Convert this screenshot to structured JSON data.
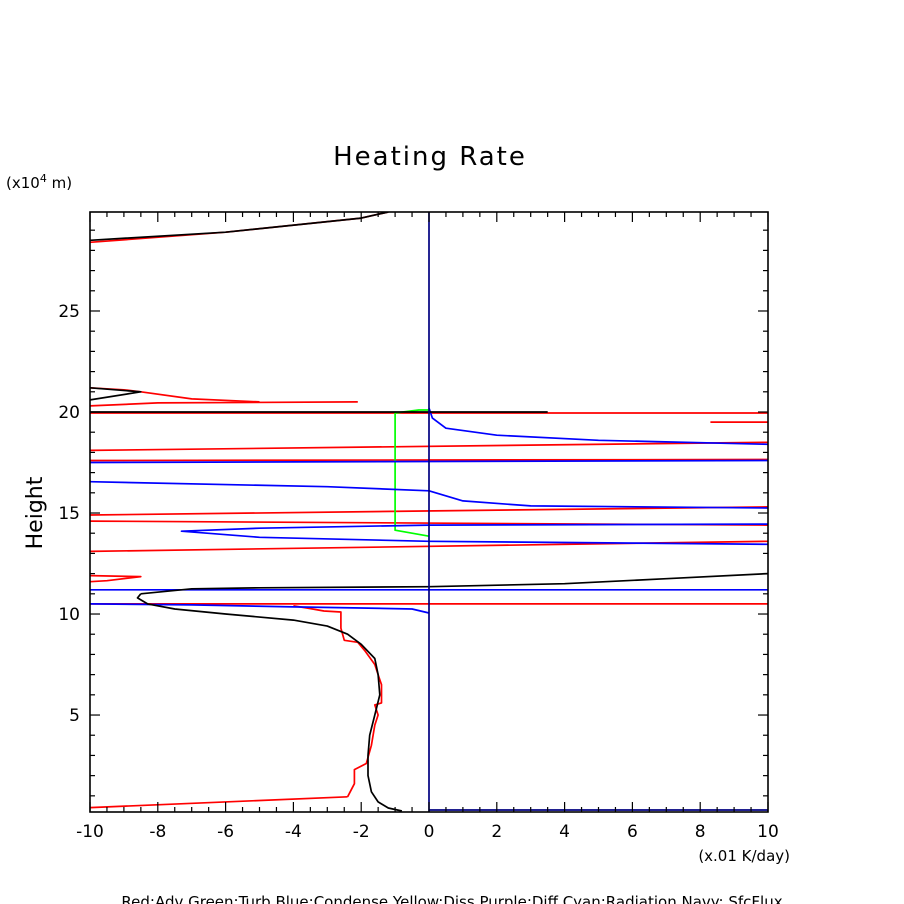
{
  "chart_data": {
    "type": "line",
    "title": "Heating Rate",
    "ylabel": "Height",
    "yunit_prefix": "(x10",
    "yunit_exp": "4",
    "yunit_suffix": " m)",
    "xunit": "(x.01 K/day)",
    "xlim": [
      -10,
      10
    ],
    "ylim": [
      0.2,
      29.9
    ],
    "xticks": [
      -10,
      -8,
      -6,
      -4,
      -2,
      0,
      2,
      4,
      6,
      8,
      10
    ],
    "yticks": [
      5,
      10,
      15,
      20,
      25
    ],
    "xtick_labels": [
      "-10",
      "-8",
      "-6",
      "-4",
      "-2",
      "0",
      "2",
      "4",
      "6",
      "8",
      "10"
    ],
    "ytick_labels": [
      "5",
      "10",
      "15",
      "20",
      "25"
    ],
    "grid": false,
    "legend_text": "Red:Adv  Green:Turb  Blue:Condense  Yellow:Diss  Purple:Diff  Cyan:Radiation  Navy: SfcFlux",
    "series": [
      {
        "name": "Red:Adv",
        "color": "#ff0000",
        "segments": [
          [
            [
              -2.4,
              0.95
            ],
            [
              -10,
              0.42
            ]
          ],
          [
            [
              -2.4,
              0.95
            ],
            [
              -2.2,
              1.6
            ],
            [
              -2.2,
              2.3
            ],
            [
              -1.85,
              2.6
            ],
            [
              -1.7,
              3.5
            ],
            [
              -1.6,
              4.5
            ],
            [
              -1.5,
              5.0
            ],
            [
              -1.6,
              5.5
            ],
            [
              -1.4,
              5.6
            ],
            [
              -1.4,
              6.5
            ],
            [
              -1.5,
              7.0
            ],
            [
              -1.6,
              7.5
            ],
            [
              -1.9,
              8.2
            ],
            [
              -2.1,
              8.6
            ],
            [
              -2.5,
              8.7
            ],
            [
              -2.6,
              9.3
            ],
            [
              -2.6,
              10.1
            ],
            [
              -3.1,
              10.15
            ],
            [
              -3.6,
              10.3
            ],
            [
              -4.0,
              10.4
            ]
          ],
          [
            [
              -10,
              10.5
            ],
            [
              10,
              10.5
            ]
          ],
          [
            [
              -10,
              11.6
            ],
            [
              -9.5,
              11.65
            ],
            [
              -8.5,
              11.85
            ],
            [
              -10,
              11.9
            ]
          ],
          [
            [
              -10,
              13.1
            ],
            [
              10,
              13.6
            ]
          ],
          [
            [
              -10,
              14.6
            ],
            [
              10,
              14.4
            ]
          ],
          [
            [
              -10,
              14.9
            ],
            [
              10,
              15.3
            ]
          ],
          [
            [
              -10,
              17.6
            ],
            [
              10,
              17.65
            ]
          ],
          [
            [
              -10,
              18.1
            ],
            [
              10,
              18.5
            ]
          ],
          [
            [
              8.3,
              19.5
            ],
            [
              10,
              19.5
            ]
          ],
          [
            [
              -10,
              19.95
            ],
            [
              10,
              19.95
            ]
          ],
          [
            [
              -10,
              20.3
            ],
            [
              -8.0,
              20.45
            ],
            [
              -2.1,
              20.5
            ]
          ],
          [
            [
              -10,
              21.2
            ],
            [
              -9.0,
              21.1
            ],
            [
              -8.5,
              21.0
            ],
            [
              -7.0,
              20.65
            ],
            [
              -5.0,
              20.5
            ]
          ],
          [
            [
              -10,
              28.4
            ],
            [
              -6.0,
              28.9
            ],
            [
              -2.0,
              29.6
            ],
            [
              -1.2,
              29.9
            ]
          ]
        ]
      },
      {
        "name": "Green:Turb",
        "color": "#00ff00",
        "segments": [
          [
            [
              0,
              13.85
            ],
            [
              -0.5,
              14.0
            ],
            [
              -1.0,
              14.15
            ],
            [
              -1.0,
              19.95
            ],
            [
              -0.3,
              20.1
            ],
            [
              0,
              20.1
            ]
          ]
        ]
      },
      {
        "name": "Blue:Condense",
        "color": "#0000ff",
        "segments": [
          [
            [
              0,
              10.05
            ],
            [
              -0.5,
              10.25
            ],
            [
              -2.0,
              10.3
            ],
            [
              -4.0,
              10.35
            ],
            [
              -7.0,
              10.45
            ],
            [
              -10,
              10.5
            ]
          ],
          [
            [
              -10,
              11.2
            ],
            [
              10,
              11.2
            ]
          ],
          [
            [
              10,
              13.45
            ],
            [
              0,
              13.6
            ],
            [
              -5.0,
              13.8
            ],
            [
              -7.3,
              14.1
            ],
            [
              -5.0,
              14.25
            ],
            [
              0,
              14.4
            ],
            [
              10,
              14.45
            ]
          ],
          [
            [
              10,
              15.25
            ],
            [
              3.0,
              15.35
            ],
            [
              1.0,
              15.6
            ],
            [
              0,
              16.1
            ],
            [
              -3.0,
              16.3
            ],
            [
              -10,
              16.55
            ]
          ],
          [
            [
              -10,
              17.5
            ],
            [
              10,
              17.6
            ]
          ],
          [
            [
              0,
              20.2
            ],
            [
              0.1,
              19.7
            ],
            [
              0.5,
              19.2
            ],
            [
              2.0,
              18.85
            ],
            [
              5.0,
              18.6
            ],
            [
              10,
              18.4
            ]
          ]
        ]
      },
      {
        "name": "Black",
        "color": "#000000",
        "segments": [
          [
            [
              -8.5,
              11.0
            ],
            [
              -8.6,
              10.8
            ],
            [
              -8.3,
              10.5
            ],
            [
              -7.5,
              10.25
            ],
            [
              -6.0,
              10.0
            ],
            [
              -4.0,
              9.7
            ],
            [
              -3.0,
              9.4
            ],
            [
              -2.4,
              9.0
            ],
            [
              -2.0,
              8.5
            ],
            [
              -1.6,
              7.8
            ],
            [
              -1.5,
              7.0
            ],
            [
              -1.45,
              6.0
            ],
            [
              -1.6,
              5.0
            ],
            [
              -1.75,
              4.0
            ],
            [
              -1.8,
              3.0
            ],
            [
              -1.8,
              2.0
            ],
            [
              -1.7,
              1.2
            ],
            [
              -1.5,
              0.7
            ],
            [
              -1.2,
              0.4
            ],
            [
              -0.8,
              0.25
            ]
          ],
          [
            [
              -8.5,
              11.0
            ],
            [
              -7.0,
              11.25
            ],
            [
              -5.0,
              11.3
            ],
            [
              0,
              11.35
            ],
            [
              4.0,
              11.5
            ],
            [
              7.0,
              11.75
            ],
            [
              10,
              12.0
            ]
          ],
          [
            [
              -10,
              20.0
            ],
            [
              3.5,
              20.0
            ]
          ],
          [
            [
              -10,
              20.6
            ],
            [
              -8.5,
              21.0
            ],
            [
              -10,
              21.2
            ]
          ],
          [
            [
              -10,
              28.5
            ],
            [
              -6.0,
              28.9
            ],
            [
              -2.0,
              29.6
            ],
            [
              -1.2,
              29.9
            ]
          ]
        ]
      },
      {
        "name": "Navy: SfcFlux",
        "color": "#000080",
        "segments": [
          [
            [
              0,
              0.2
            ],
            [
              0,
              29.9
            ]
          ],
          [
            [
              0,
              0.3
            ],
            [
              10,
              0.3
            ]
          ]
        ]
      }
    ]
  }
}
